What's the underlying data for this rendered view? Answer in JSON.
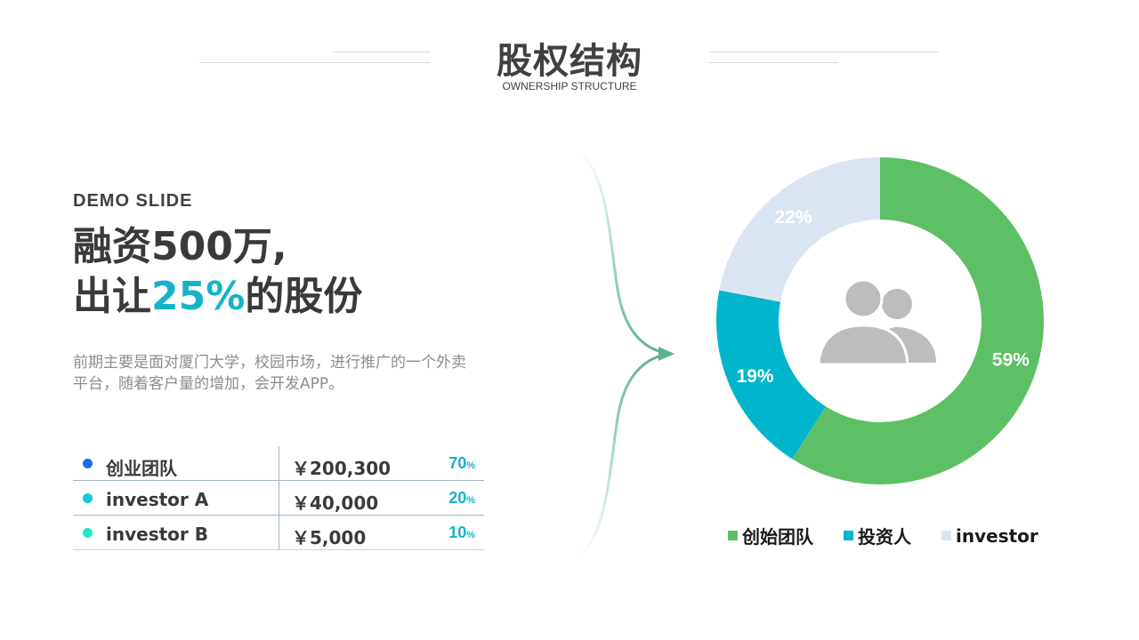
{
  "header": {
    "title": "股权结构",
    "subtitle": "OWNERSHIP STRUCTURE"
  },
  "left": {
    "eyebrow": "DEMO SLIDE",
    "headline_line1": "融资500万,",
    "headline_line2_prefix": "出让",
    "headline_line2_accent": "25%",
    "headline_line2_suffix": "的股份",
    "description": "前期主要是面对厦门大学，校园市场，进行推广的一个外卖平台，随着客户量的增加，会开发APP。"
  },
  "table": {
    "rows": [
      {
        "name": "创业团队",
        "amount": "￥200,300",
        "pct": "70",
        "pct_unit": "%",
        "dot_color": "#1a6fe0"
      },
      {
        "name": "investor A",
        "amount": "￥40,000",
        "pct": "20",
        "pct_unit": "%",
        "dot_color": "#14c8dc"
      },
      {
        "name": "investor B",
        "amount": "￥5,000",
        "pct": "10",
        "pct_unit": "%",
        "dot_color": "#1de8c8"
      }
    ]
  },
  "chart_data": {
    "type": "pie",
    "variant": "donut",
    "title": "",
    "slices": [
      {
        "name": "创始团队",
        "value": 59,
        "label": "59%",
        "color": "#5ec065"
      },
      {
        "name": "投资人",
        "value": 19,
        "label": "19%",
        "color": "#00b5cc"
      },
      {
        "name": "investor",
        "value": 22,
        "label": "22%",
        "color": "#dbe5f2"
      }
    ],
    "legend_position": "bottom",
    "center_icon": "users-icon"
  }
}
